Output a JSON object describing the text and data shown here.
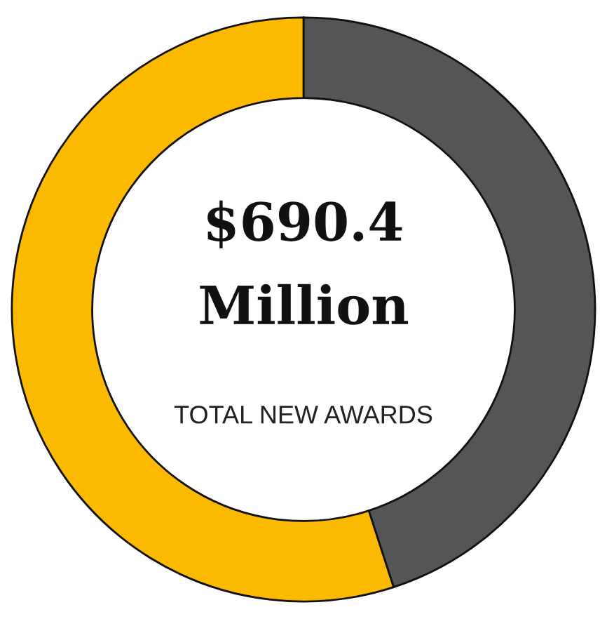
{
  "chart_data": {
    "type": "donut",
    "title": "$690.4 Million",
    "subtitle": "TOTAL NEW AWARDS",
    "categories": [
      null,
      null
    ],
    "values": [
      45,
      55
    ],
    "colors": [
      "#555555",
      "#fbb900"
    ]
  }
}
